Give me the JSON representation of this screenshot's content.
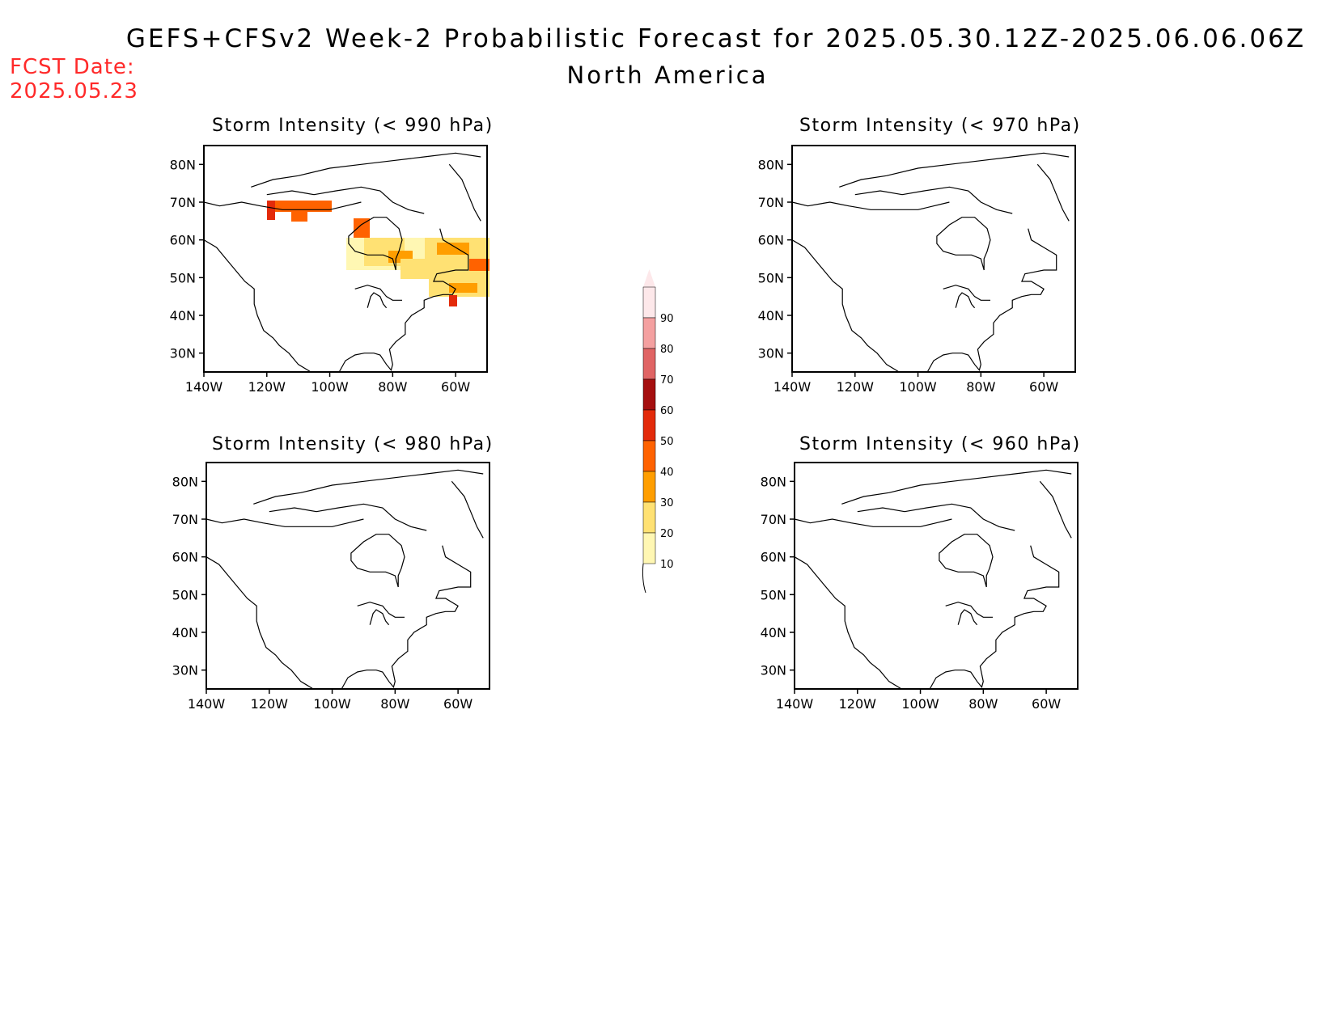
{
  "header": {
    "title": "GEFS+CFSv2 Week-2 Probabilistic Forecast for 2025.05.30.12Z-2025.06.06.06Z",
    "region": "North America",
    "fcst_label": "FCST Date:",
    "fcst_date": "2025.05.23"
  },
  "panels": [
    {
      "id": "p990",
      "title": "Storm Intensity (< 990 hPa)"
    },
    {
      "id": "p970",
      "title": "Storm Intensity (< 970 hPa)"
    },
    {
      "id": "p980",
      "title": "Storm Intensity (< 980 hPa)"
    },
    {
      "id": "p960",
      "title": "Storm Intensity (< 960 hPa)"
    }
  ],
  "axes": {
    "lat_ticks": [
      "80N",
      "70N",
      "60N",
      "50N",
      "40N",
      "30N"
    ],
    "lon_ticks": [
      "140W",
      "120W",
      "100W",
      "80W",
      "60W"
    ],
    "lat_range": [
      25,
      85
    ],
    "lon_range": [
      -140,
      -50
    ]
  },
  "legend": {
    "labels": [
      "90",
      "80",
      "70",
      "60",
      "50",
      "40",
      "30",
      "20",
      "10"
    ],
    "colors": [
      "#fde8ea",
      "#f4a0a0",
      "#e06464",
      "#a50f0f",
      "#e32a0a",
      "#ff6200",
      "#ff9e00",
      "#ffe173",
      "#fff7b3"
    ]
  },
  "colors": {
    "fcst": "#ff2a2a"
  }
}
